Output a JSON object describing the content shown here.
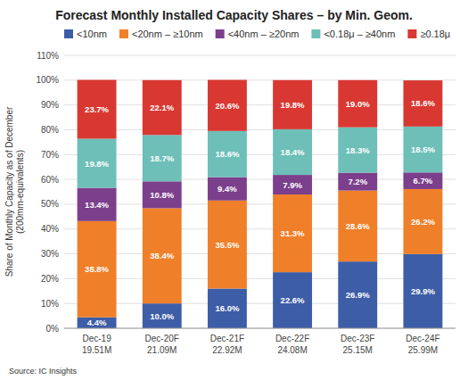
{
  "chart_data": {
    "type": "bar",
    "stacked": true,
    "title": "Forecast Monthly Installed Capacity Shares – by Min. Geom.",
    "y_label": "Share of Monthly Capacity as of December\n(200mm-equivalents)",
    "source": "Source:  IC Insights",
    "categories": [
      "Dec-19\n19.51M",
      "Dec-20F\n21.09M",
      "Dec-21F\n22.92M",
      "Dec-22F\n24.08M",
      "Dec-23F\n25.15M",
      "Dec-24F\n25.99M"
    ],
    "series": [
      {
        "name": "<10nm",
        "color": "#3d5da7",
        "values": [
          4.4,
          10.0,
          16.0,
          22.6,
          26.9,
          29.9
        ],
        "value_labels": [
          "4.4%",
          "10.0%",
          "16.0%",
          "22.6%",
          "26.9%",
          "29.9%"
        ]
      },
      {
        "name": "<20nm – ≥10nm",
        "color": "#f07f2a",
        "values": [
          38.8,
          38.4,
          35.5,
          31.3,
          28.6,
          26.2
        ],
        "value_labels": [
          "38.8%",
          "38.4%",
          "35.5%",
          "31.3%",
          "28.6%",
          "26.2%"
        ]
      },
      {
        "name": "<40nm – ≥20nm",
        "color": "#7b3f8c",
        "values": [
          13.4,
          10.8,
          9.4,
          7.9,
          7.2,
          6.7
        ],
        "value_labels": [
          "13.4%",
          "10.8%",
          "9.4%",
          "7.9%",
          "7.2%",
          "6.7%"
        ]
      },
      {
        "name": "<0.18μ – ≥40nm",
        "color": "#6dbfb8",
        "values": [
          19.8,
          18.7,
          18.6,
          18.4,
          18.3,
          18.5
        ],
        "value_labels": [
          "19.8%",
          "18.7%",
          "18.6%",
          "18.4%",
          "18.3%",
          "18.5%"
        ]
      },
      {
        "name": "≥0.18μ",
        "color": "#d93832",
        "values": [
          23.7,
          22.1,
          20.6,
          19.8,
          19.0,
          18.6
        ],
        "value_labels": [
          "23.7%",
          "22.1%",
          "20.6%",
          "19.8%",
          "19.0%",
          "18.6%"
        ]
      }
    ],
    "ylim": [
      0,
      110
    ],
    "yticks": [
      {
        "value": 0,
        "label": "0%"
      },
      {
        "value": 10,
        "label": "10%"
      },
      {
        "value": 20,
        "label": "20%"
      },
      {
        "value": 30,
        "label": "30%"
      },
      {
        "value": 40,
        "label": "40%"
      },
      {
        "value": 50,
        "label": "50%"
      },
      {
        "value": 60,
        "label": "60%"
      },
      {
        "value": 70,
        "label": "70%"
      },
      {
        "value": 80,
        "label": "80%"
      },
      {
        "value": 90,
        "label": "90%"
      },
      {
        "value": 100,
        "label": "100%"
      },
      {
        "value": 110,
        "label": "110%"
      }
    ],
    "grid": true,
    "legend": "top",
    "data_labels": true
  }
}
